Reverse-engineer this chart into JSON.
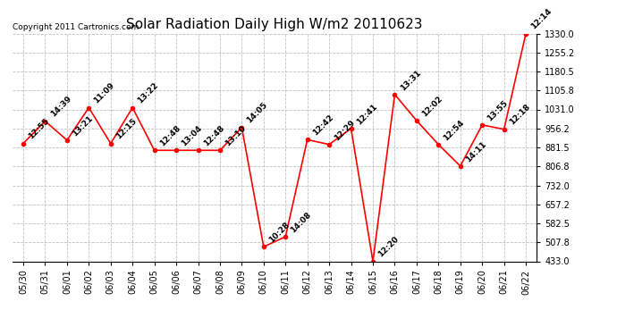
{
  "title": "Solar Radiation Daily High W/m2 20110623",
  "copyright": "Copyright 2011 Cartronics.com",
  "dates": [
    "05/30",
    "05/31",
    "06/01",
    "06/02",
    "06/03",
    "06/04",
    "06/05",
    "06/06",
    "06/07",
    "06/08",
    "06/09",
    "06/10",
    "06/11",
    "06/12",
    "06/13",
    "06/14",
    "06/15",
    "06/16",
    "06/17",
    "06/18",
    "06/19",
    "06/20",
    "06/21",
    "06/22"
  ],
  "values": [
    897,
    985,
    910,
    1038,
    897,
    1038,
    870,
    870,
    870,
    870,
    960,
    490,
    530,
    912,
    893,
    956,
    433,
    1090,
    987,
    893,
    808,
    970,
    953,
    1330
  ],
  "labels": [
    "12:55",
    "14:39",
    "13:21",
    "11:09",
    "12:15",
    "13:22",
    "12:48",
    "13:04",
    "12:48",
    "13:10",
    "14:05",
    "10:28",
    "14:08",
    "12:42",
    "12:29",
    "12:41",
    "12:20",
    "13:31",
    "12:02",
    "12:54",
    "14:11",
    "13:55",
    "12:18",
    "12:14"
  ],
  "ylim_min": 433.0,
  "ylim_max": 1330.0,
  "yticks": [
    433.0,
    507.8,
    582.5,
    657.2,
    732.0,
    806.8,
    881.5,
    956.2,
    1031.0,
    1105.8,
    1180.5,
    1255.2,
    1330.0
  ],
  "line_color": "red",
  "marker_color": "red",
  "bg_color": "white",
  "grid_color": "#bbbbbb",
  "title_fontsize": 11,
  "label_fontsize": 6.5,
  "tick_fontsize": 7,
  "copyright_fontsize": 6.5
}
